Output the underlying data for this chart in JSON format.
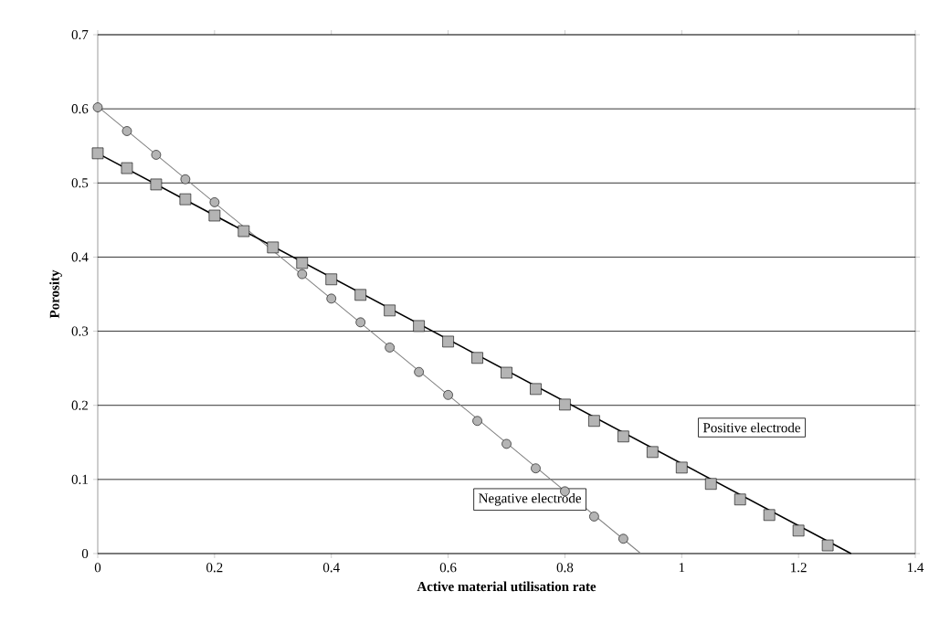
{
  "chart_data": {
    "type": "scatter",
    "xlabel": "Active material utilisation rate",
    "ylabel": "Porosity",
    "xlim": [
      0,
      1.4
    ],
    "ylim": [
      0,
      0.7
    ],
    "xticks": [
      0,
      0.2,
      0.4,
      0.6,
      0.8,
      1,
      1.2,
      1.4
    ],
    "yticks": [
      0,
      0.1,
      0.2,
      0.3,
      0.4,
      0.5,
      0.6,
      0.7
    ],
    "grid": "y",
    "series": [
      {
        "type": "line",
        "color": "#808080",
        "marker": "none",
        "x": [
          0,
          0.93
        ],
        "values": [
          0.603,
          0
        ]
      },
      {
        "type": "line",
        "color": "#000000",
        "marker": "none",
        "x": [
          0,
          1.29
        ],
        "values": [
          0.54,
          0
        ]
      },
      {
        "color": "#b4b4b4",
        "marker": "circle",
        "x": [
          0,
          0.05,
          0.1,
          0.15,
          0.2,
          0.25,
          0.3,
          0.35,
          0.4,
          0.45,
          0.5,
          0.55,
          0.6,
          0.65,
          0.7,
          0.75,
          0.8,
          0.85,
          0.9
        ],
        "values": [
          0.602,
          0.57,
          0.538,
          0.505,
          0.474,
          null,
          null,
          0.377,
          0.344,
          0.312,
          0.278,
          0.245,
          0.214,
          0.179,
          0.148,
          0.115,
          0.084,
          0.05,
          0.02
        ]
      },
      {
        "color": "#b4b4b4",
        "marker": "square",
        "x": [
          0,
          0.05,
          0.1,
          0.15,
          0.2,
          0.25,
          0.3,
          0.35,
          0.4,
          0.45,
          0.5,
          0.55,
          0.6,
          0.65,
          0.7,
          0.75,
          0.8,
          0.85,
          0.9,
          0.95,
          1.0,
          1.05,
          1.1,
          1.15,
          1.2,
          1.25
        ],
        "values": [
          0.54,
          0.52,
          0.498,
          0.478,
          0.456,
          0.435,
          0.413,
          0.392,
          0.37,
          0.349,
          0.328,
          0.307,
          0.286,
          0.264,
          0.244,
          0.222,
          0.201,
          0.179,
          0.158,
          0.137,
          0.116,
          0.094,
          0.073,
          0.052,
          0.031,
          0.011
        ]
      }
    ],
    "annotations": [
      "Positive electrode",
      "Negative electrode"
    ]
  }
}
